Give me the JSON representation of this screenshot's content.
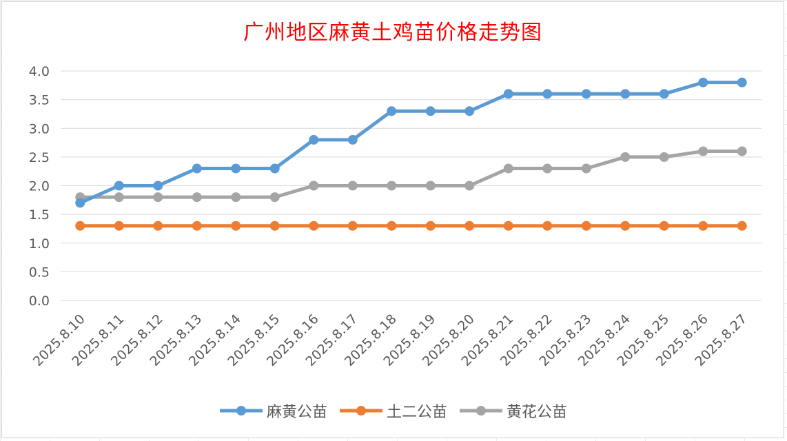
{
  "chart_data": {
    "type": "line",
    "title": "广州地区麻黄土鸡苗价格走势图",
    "categories": [
      "2025.8.10",
      "2025.8.11",
      "2025.8.12",
      "2025.8.13",
      "2025.8.14",
      "2025.8.15",
      "2025.8.16",
      "2025.8.17",
      "2025.8.18",
      "2025.8.19",
      "2025.8.20",
      "2025.8.21",
      "2025.8.22",
      "2025.8.23",
      "2025.8.24",
      "2025.8.25",
      "2025.8.26",
      "2025.8.27"
    ],
    "ylim": [
      0,
      4
    ],
    "yticks": [
      "0.0",
      "0.5",
      "1.0",
      "1.5",
      "2.0",
      "2.5",
      "3.0",
      "3.5",
      "4.0"
    ],
    "grid": true,
    "legend_position": "bottom",
    "series": [
      {
        "name": "麻黄公苗",
        "color": "#5b9bd5",
        "values": [
          1.7,
          2.0,
          2.0,
          2.3,
          2.3,
          2.3,
          2.8,
          2.8,
          3.3,
          3.3,
          3.3,
          3.6,
          3.6,
          3.6,
          3.6,
          3.6,
          3.8,
          3.8
        ]
      },
      {
        "name": "土二公苗",
        "color": "#ed7d31",
        "values": [
          1.3,
          1.3,
          1.3,
          1.3,
          1.3,
          1.3,
          1.3,
          1.3,
          1.3,
          1.3,
          1.3,
          1.3,
          1.3,
          1.3,
          1.3,
          1.3,
          1.3,
          1.3
        ]
      },
      {
        "name": "黄花公苗",
        "color": "#a5a5a5",
        "values": [
          1.8,
          1.8,
          1.8,
          1.8,
          1.8,
          1.8,
          2.0,
          2.0,
          2.0,
          2.0,
          2.0,
          2.3,
          2.3,
          2.3,
          2.5,
          2.5,
          2.6,
          2.6
        ]
      }
    ]
  }
}
